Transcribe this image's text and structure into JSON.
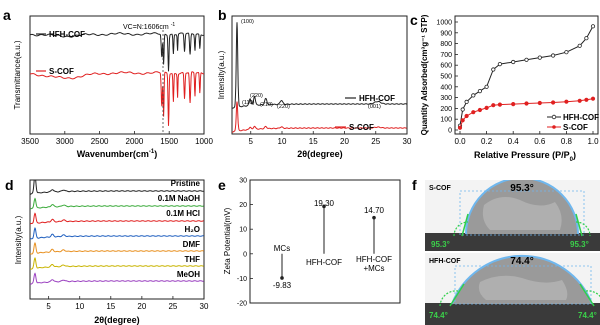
{
  "panels": {
    "a": {
      "letter": "a",
      "xlabel": "Wavenumber(cm",
      "xlabel_sup": "-1",
      "xlabel_end": ")",
      "ylabel": "Transmittance(a.u.)",
      "ticks_x": [
        "3500",
        "3000",
        "2500",
        "2000",
        "1500",
        "1000"
      ],
      "series": [
        "HFH-COF",
        "S-COF"
      ],
      "annotation": "VC=N:1606cm",
      "annotation_sup": "-1"
    },
    "b": {
      "letter": "b",
      "xlabel": "2θ(degree)",
      "ylabel": "Intensity(a.u.)",
      "ticks_x": [
        "5",
        "10",
        "15",
        "20",
        "25",
        "30"
      ],
      "series": [
        "HFH-COF",
        "S-COF"
      ],
      "peaks": [
        "(100)",
        "(110)",
        "(220)",
        "(210)",
        "(220)",
        "(001)"
      ]
    },
    "c": {
      "letter": "c",
      "xlabel": "Relative Pressure (P/P",
      "xlabel_sub": "0",
      "xlabel_end": ")",
      "ylabel": "Quantity Adsorbed(cm³g⁻¹ STP)",
      "ticks_x": [
        "0.0",
        "0.2",
        "0.4",
        "0.6",
        "0.8",
        "1.0"
      ],
      "ticks_y": [
        "0",
        "100",
        "200",
        "300",
        "400",
        "500",
        "600",
        "700",
        "800",
        "900",
        "1000"
      ],
      "series": [
        "HFH-COF",
        "S-COF"
      ]
    },
    "d": {
      "letter": "d",
      "xlabel": "2θ(degree)",
      "ylabel": "Intensity(a.u.)",
      "ticks_x": [
        "5",
        "10",
        "15",
        "20",
        "25",
        "30"
      ],
      "series": [
        "Pristine",
        "0.1M NaOH",
        "0.1M HCl",
        "H₂O",
        "DMF",
        "THF",
        "MeOH"
      ]
    },
    "e": {
      "letter": "e",
      "ylabel": "Zeta Potential(mV)",
      "ticks_y": [
        "30",
        "20",
        "10",
        "0",
        "-10",
        "-20"
      ],
      "labels": [
        "MCs",
        "HFH-COF",
        "HFH-COF",
        "+MCs"
      ],
      "value_labels": [
        "-9.83",
        "19.30",
        "14.70"
      ]
    },
    "f": {
      "letter": "f",
      "top_label": "S-COF",
      "top_angle": "95.3°",
      "top_corner": "95.3°",
      "top_corner2": "95.3°",
      "bottom_label": "HFH-COF",
      "bottom_angle": "74.4°",
      "bottom_corner": "74.4°",
      "bottom_corner2": "74.4°"
    }
  },
  "colors": {
    "black": "#222222",
    "red": "#e02020",
    "blue": "#1f5fbf",
    "cyan": "#29a0d0",
    "green": "#3aaa3a",
    "orange": "#e89020",
    "yellow": "#c8b400",
    "purple": "#9a40c0"
  },
  "chart_data": [
    {
      "type": "line",
      "panel": "a",
      "xlim": [
        3500,
        1000
      ],
      "xlabel": "Wavenumber(cm-1)",
      "ylabel": "Transmittance(a.u.)",
      "series": [
        {
          "name": "HFH-COF",
          "color": "#222222"
        },
        {
          "name": "S-COF",
          "color": "#e02020"
        }
      ],
      "annotation": "VC=N:1606cm-1",
      "marker_x": 1606
    },
    {
      "type": "line",
      "panel": "b",
      "xlim": [
        2,
        30
      ],
      "xlabel": "2θ(degree)",
      "ylabel": "Intensity(a.u.)",
      "series": [
        {
          "name": "HFH-COF",
          "color": "#222222"
        },
        {
          "name": "S-COF",
          "color": "#e02020"
        }
      ],
      "peak_positions": [
        2.8,
        4.9,
        5.6,
        7.4,
        9.9,
        25.3
      ]
    },
    {
      "type": "line",
      "panel": "c",
      "xlim": [
        0,
        1.0
      ],
      "ylim": [
        0,
        1000
      ],
      "xlabel": "Relative Pressure (P/P0)",
      "ylabel": "Quantity Adsorbed(cm3g-1 STP)",
      "series": [
        {
          "name": "HFH-COF",
          "color": "#222222",
          "x": [
            0.0,
            0.02,
            0.05,
            0.1,
            0.15,
            0.2,
            0.25,
            0.3,
            0.4,
            0.5,
            0.6,
            0.7,
            0.8,
            0.9,
            0.95,
            1.0
          ],
          "y": [
            40,
            190,
            260,
            320,
            360,
            400,
            560,
            610,
            630,
            650,
            670,
            690,
            720,
            780,
            850,
            960
          ]
        },
        {
          "name": "S-COF",
          "color": "#e02020",
          "x": [
            0.0,
            0.02,
            0.05,
            0.1,
            0.15,
            0.2,
            0.25,
            0.3,
            0.4,
            0.5,
            0.6,
            0.7,
            0.8,
            0.9,
            0.95,
            1.0
          ],
          "y": [
            20,
            90,
            130,
            165,
            185,
            205,
            230,
            235,
            240,
            245,
            250,
            255,
            262,
            270,
            280,
            290
          ]
        }
      ]
    },
    {
      "type": "line",
      "panel": "d",
      "xlim": [
        2,
        30
      ],
      "xlabel": "2θ(degree)",
      "ylabel": "Intensity(a.u.)",
      "series": [
        {
          "name": "Pristine",
          "color": "#222222"
        },
        {
          "name": "0.1M NaOH",
          "color": "#3aaa3a"
        },
        {
          "name": "0.1M HCl",
          "color": "#e02020"
        },
        {
          "name": "H₂O",
          "color": "#1f5fbf"
        },
        {
          "name": "DMF",
          "color": "#e89020"
        },
        {
          "name": "THF",
          "color": "#c8b400"
        },
        {
          "name": "MeOH",
          "color": "#9a40c0"
        }
      ]
    },
    {
      "type": "bar",
      "panel": "e",
      "ylim": [
        -20,
        30
      ],
      "ylabel": "Zeta Potential(mV)",
      "categories": [
        "MCs",
        "HFH-COF",
        "HFH-COF+MCs"
      ],
      "values": [
        -9.83,
        19.3,
        14.7
      ]
    }
  ]
}
